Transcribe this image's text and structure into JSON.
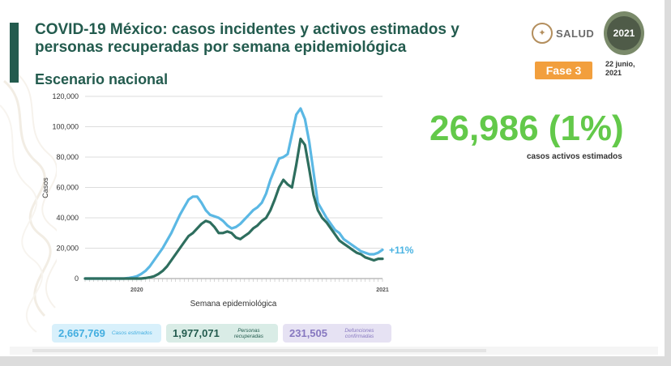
{
  "header": {
    "title": "COVID-19 México: casos incidentes y activos estimados y personas recuperadas por semana epidemiológica",
    "subtitle": "Escenario nacional",
    "salud_logo_text": "SALUD",
    "fase": "Fase 3",
    "fecha": "22 junio, 2021"
  },
  "headline": {
    "value": "26,986 (1%)",
    "label": "casos activos estimados"
  },
  "change_label": "+11%",
  "summary": {
    "estimados": {
      "value": "2,667,769",
      "label": "Casos estimados"
    },
    "recuperadas": {
      "value": "1,977,071",
      "label": "Personas recuperadas"
    },
    "defunciones": {
      "value": "231,505",
      "label": "Defunciones confirmadas"
    }
  },
  "colors": {
    "estimated": "#5bb8e4",
    "active": "#2e6e5e",
    "brand": "#235b4e",
    "headline": "#63c94a",
    "fase": "#f29f3d"
  },
  "chart_data": {
    "type": "line",
    "xlabel": "Semana epidemiológica",
    "ylabel": "Casos",
    "ylim": [
      0,
      120000
    ],
    "yticks": [
      0,
      20000,
      40000,
      60000,
      80000,
      100000,
      120000
    ],
    "year_labels": [
      {
        "text": "2020",
        "week_index": 12
      },
      {
        "text": "2021",
        "week_index": 69
      }
    ],
    "series": [
      {
        "values": [
          0,
          0,
          0,
          0,
          0,
          0,
          0,
          0,
          0,
          0,
          300,
          800,
          1500,
          3000,
          5000,
          8000,
          12000,
          16000,
          20000,
          25000,
          30000,
          36000,
          42000,
          47000,
          52000,
          54000,
          54000,
          50000,
          45000,
          42000,
          41000,
          40000,
          38000,
          35000,
          33000,
          34000,
          36000,
          39000,
          42000,
          45000,
          47000,
          50000,
          56000,
          65000,
          72000,
          79000,
          80000,
          82000,
          95000,
          108000,
          112000,
          105000,
          90000,
          70000,
          50000,
          45000,
          40000,
          36000,
          32000,
          30000,
          26000,
          24000,
          22000,
          20000,
          18000,
          17000,
          16000,
          16000,
          17000,
          19000
        ]
      },
      {
        "values": [
          0,
          0,
          0,
          0,
          0,
          0,
          0,
          0,
          0,
          0,
          0,
          0,
          0,
          0,
          300,
          800,
          1500,
          3000,
          5000,
          8000,
          12000,
          16000,
          20000,
          24000,
          28000,
          30000,
          33000,
          36000,
          38000,
          37000,
          34000,
          30000,
          30000,
          31000,
          30000,
          27000,
          26000,
          28000,
          30000,
          33000,
          35000,
          38000,
          40000,
          45000,
          52000,
          60000,
          65000,
          62000,
          60000,
          75000,
          92000,
          88000,
          72000,
          55000,
          45000,
          40000,
          37000,
          33000,
          29000,
          25000,
          23000,
          21000,
          19000,
          17000,
          16000,
          14000,
          13000,
          12000,
          13000,
          13000
        ]
      }
    ]
  }
}
